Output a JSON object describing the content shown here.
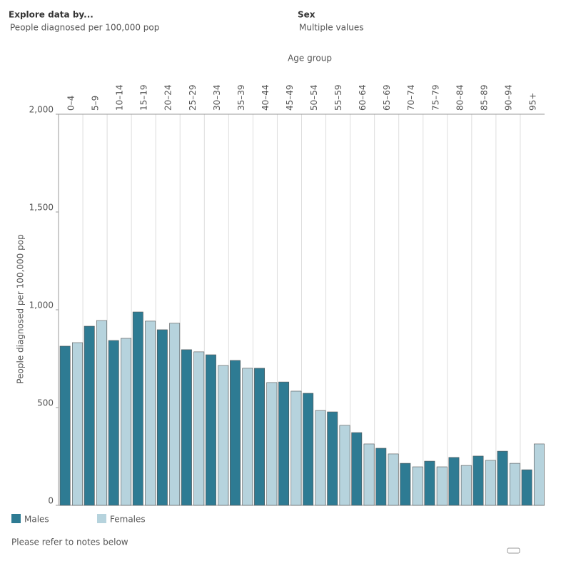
{
  "filters": {
    "explore_label": "Explore data by...",
    "explore_value": "People diagnosed per 100,000 pop",
    "sex_label": "Sex",
    "sex_value": "Multiple values"
  },
  "chart_data": {
    "type": "bar",
    "x_label": "Age group",
    "y_label": "People diagnosed per 100,000 pop",
    "categories": [
      "0–4",
      "5–9",
      "10–14",
      "15–19",
      "20–24",
      "25–29",
      "30–34",
      "35–39",
      "40–44",
      "45–49",
      "50–54",
      "55–59",
      "60–64",
      "65–69",
      "70–74",
      "75–79",
      "80–84",
      "85–89",
      "90–94",
      "95+"
    ],
    "series": [
      {
        "name": "Males",
        "color": "#2e7b93",
        "values": [
          814,
          916,
          843,
          989,
          898,
          796,
          770,
          741,
          701,
          631,
          573,
          478,
          372,
          292,
          215,
          226,
          245,
          252,
          277,
          182
        ]
      },
      {
        "name": "Females",
        "color": "#b6d3dd",
        "values": [
          832,
          945,
          854,
          942,
          931,
          785,
          715,
          701,
          628,
          584,
          485,
          409,
          314,
          263,
          197,
          197,
          204,
          230,
          215,
          314
        ]
      }
    ],
    "ylim": [
      0,
      2000
    ],
    "yticks": [
      0,
      500,
      {
        "value": 1000,
        "label": "1,000"
      },
      {
        "value": 1500,
        "label": "1,500"
      },
      {
        "value": 2000,
        "label": "2,000"
      }
    ],
    "grid": true,
    "legend": "bottom-left"
  },
  "footnote": "Please refer to notes below"
}
